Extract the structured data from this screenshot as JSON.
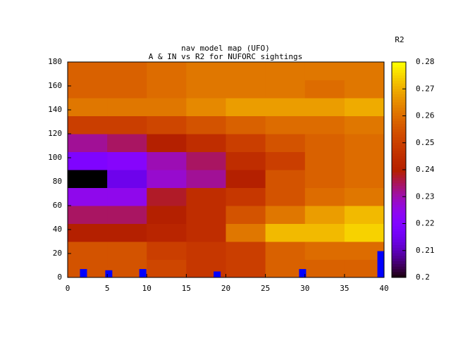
{
  "chart_data": {
    "type": "heatmap",
    "title": "nav model map (UFO)",
    "subtitle": "A & IN vs R2 for NUFORC sightings",
    "colorbar_label": "R2",
    "palette": "gnuplot-rgbformulae-7-5-15",
    "xbins": [
      0,
      5,
      10,
      15,
      20,
      25,
      30,
      35,
      40
    ],
    "ybins": [
      0,
      15,
      30,
      45,
      60,
      75,
      90,
      105,
      120,
      135,
      150,
      165,
      180
    ],
    "values": [
      [
        0.255,
        0.255,
        0.252,
        0.248,
        0.25,
        0.258,
        0.258,
        0.258
      ],
      [
        0.255,
        0.255,
        0.25,
        0.248,
        0.25,
        0.258,
        0.26,
        0.26
      ],
      [
        0.24,
        0.24,
        0.242,
        0.245,
        0.262,
        0.272,
        0.272,
        0.275
      ],
      [
        0.235,
        0.235,
        0.24,
        0.245,
        0.255,
        0.262,
        0.268,
        0.272
      ],
      [
        0.225,
        0.225,
        0.238,
        0.245,
        0.248,
        0.255,
        0.26,
        0.262
      ],
      [
        0.2,
        0.215,
        0.228,
        0.232,
        0.24,
        0.255,
        0.258,
        0.26
      ],
      [
        0.22,
        0.222,
        0.23,
        0.235,
        0.245,
        0.25,
        0.258,
        0.26
      ],
      [
        0.232,
        0.235,
        0.24,
        0.245,
        0.25,
        0.255,
        0.258,
        0.26
      ],
      [
        0.25,
        0.25,
        0.252,
        0.255,
        0.258,
        0.26,
        0.26,
        0.262
      ],
      [
        0.262,
        0.262,
        0.262,
        0.265,
        0.268,
        0.268,
        0.268,
        0.27
      ],
      [
        0.258,
        0.258,
        0.26,
        0.262,
        0.262,
        0.262,
        0.26,
        0.262
      ],
      [
        0.258,
        0.258,
        0.26,
        0.262,
        0.262,
        0.262,
        0.262,
        0.262
      ]
    ],
    "markers": {
      "color": "#0000ff",
      "x": [
        2,
        5.2,
        9.5,
        18.9,
        29.7,
        39.6
      ],
      "values": [
        7,
        6,
        7,
        5,
        7,
        22
      ]
    },
    "xlim": [
      0,
      40
    ],
    "xticks": [
      0,
      5,
      10,
      15,
      20,
      25,
      30,
      35,
      40
    ],
    "ylim": [
      0,
      180
    ],
    "yticks": [
      0,
      20,
      40,
      60,
      80,
      100,
      120,
      140,
      160,
      180
    ],
    "zlim": [
      0.2,
      0.28
    ],
    "zticks": [
      0.2,
      0.21,
      0.22,
      0.23,
      0.24,
      0.25,
      0.26,
      0.27,
      0.28
    ]
  }
}
